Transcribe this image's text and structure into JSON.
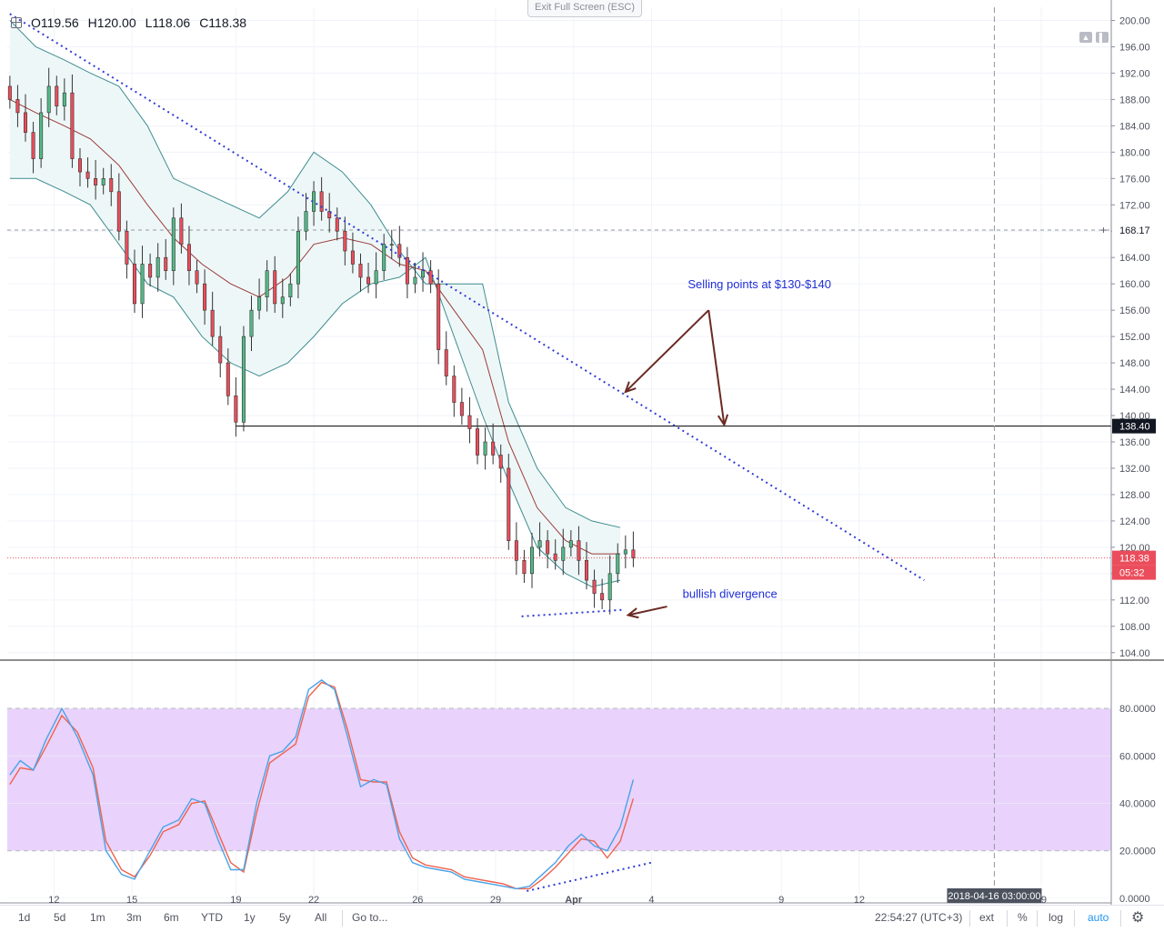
{
  "ohlc": {
    "open": "O119.56",
    "high": "H120.00",
    "low": "L118.06",
    "close": "C118.38"
  },
  "exit_fullscreen_label": "Exit Full Screen (ESC)",
  "chart_data": [
    {
      "type": "candlestick",
      "title": "",
      "y_ticks": [
        104,
        108,
        112,
        116,
        120,
        124,
        128,
        132,
        136,
        140,
        144,
        148,
        152,
        156,
        160,
        164,
        168,
        172,
        176,
        180,
        184,
        188,
        192,
        196,
        200
      ],
      "y_tick_labels": [
        "104.00",
        "108.00",
        "112.00",
        "116.00",
        "120.00",
        "124.00",
        "128.00",
        "132.00",
        "136.00",
        "140.00",
        "144.00",
        "148.00",
        "152.00",
        "156.00",
        "160.00",
        "164.00",
        "168.00",
        "172.00",
        "176.00",
        "180.00",
        "184.00",
        "188.00",
        "192.00",
        "196.00",
        "200.00"
      ],
      "ylim": [
        103,
        202
      ],
      "x_ticks": [
        {
          "t": 12,
          "label": "12"
        },
        {
          "t": 15,
          "label": "15"
        },
        {
          "t": 19,
          "label": "19"
        },
        {
          "t": 22,
          "label": "22"
        },
        {
          "t": 26,
          "label": "26"
        },
        {
          "t": 29,
          "label": "29"
        },
        {
          "t": 32,
          "label": "Apr"
        },
        {
          "t": 35,
          "label": "4"
        },
        {
          "t": 40,
          "label": "9"
        },
        {
          "t": 43,
          "label": "12"
        },
        {
          "t": 50,
          "label": "19"
        }
      ],
      "xlim": [
        10.2,
        52.7
      ],
      "closes": [
        [
          10.3,
          188
        ],
        [
          10.6,
          186
        ],
        [
          10.9,
          183
        ],
        [
          11.2,
          179
        ],
        [
          11.5,
          186
        ],
        [
          11.8,
          190
        ],
        [
          12.1,
          187
        ],
        [
          12.4,
          189
        ],
        [
          12.7,
          179
        ],
        [
          13.0,
          177
        ],
        [
          13.3,
          176
        ],
        [
          13.6,
          175
        ],
        [
          13.9,
          176
        ],
        [
          14.2,
          174
        ],
        [
          14.5,
          168
        ],
        [
          14.8,
          163
        ],
        [
          15.1,
          157
        ],
        [
          15.4,
          163
        ],
        [
          15.7,
          161
        ],
        [
          16.0,
          164
        ],
        [
          16.3,
          162
        ],
        [
          16.6,
          170
        ],
        [
          16.9,
          166
        ],
        [
          17.2,
          162
        ],
        [
          17.5,
          160
        ],
        [
          17.8,
          156
        ],
        [
          18.1,
          152
        ],
        [
          18.4,
          148
        ],
        [
          18.7,
          143
        ],
        [
          19.0,
          139
        ],
        [
          19.3,
          152
        ],
        [
          19.6,
          156
        ],
        [
          19.9,
          158
        ],
        [
          20.2,
          162
        ],
        [
          20.5,
          157
        ],
        [
          20.8,
          158
        ],
        [
          21.1,
          160
        ],
        [
          21.4,
          168
        ],
        [
          21.7,
          171
        ],
        [
          22.0,
          174
        ],
        [
          22.3,
          171
        ],
        [
          22.6,
          170
        ],
        [
          22.9,
          168
        ],
        [
          23.2,
          165
        ],
        [
          23.5,
          163
        ],
        [
          23.8,
          161
        ],
        [
          24.1,
          160
        ],
        [
          24.4,
          162
        ],
        [
          24.7,
          166
        ],
        [
          25.0,
          166
        ],
        [
          25.3,
          164
        ],
        [
          25.6,
          160
        ],
        [
          25.9,
          161
        ],
        [
          26.2,
          162
        ],
        [
          26.5,
          160
        ],
        [
          26.8,
          150
        ],
        [
          27.1,
          146
        ],
        [
          27.4,
          142
        ],
        [
          27.7,
          140
        ],
        [
          28.0,
          138
        ],
        [
          28.3,
          134
        ],
        [
          28.6,
          136
        ],
        [
          28.9,
          134
        ],
        [
          29.2,
          132
        ],
        [
          29.5,
          121
        ],
        [
          29.8,
          118
        ],
        [
          30.1,
          116
        ],
        [
          30.4,
          120
        ],
        [
          30.7,
          121
        ],
        [
          31.0,
          119
        ],
        [
          31.3,
          118
        ],
        [
          31.6,
          120
        ],
        [
          31.9,
          121
        ],
        [
          32.2,
          118
        ],
        [
          32.5,
          115
        ],
        [
          32.8,
          113
        ],
        [
          33.1,
          112
        ],
        [
          33.4,
          116
        ],
        [
          33.7,
          119
        ],
        [
          34.0,
          119.6
        ],
        [
          34.3,
          118.38
        ]
      ],
      "bollinger": {
        "upper": [
          [
            10.3,
            200
          ],
          [
            11.3,
            196
          ],
          [
            12.4,
            194
          ],
          [
            13.4,
            192
          ],
          [
            14.5,
            190
          ],
          [
            15.6,
            184
          ],
          [
            16.6,
            176
          ],
          [
            17.7,
            174
          ],
          [
            18.8,
            172
          ],
          [
            19.9,
            170
          ],
          [
            21.0,
            174
          ],
          [
            22.0,
            180
          ],
          [
            23.1,
            177
          ],
          [
            24.2,
            172
          ],
          [
            25.3,
            165
          ],
          [
            26.3,
            160
          ],
          [
            27.4,
            160
          ],
          [
            28.5,
            160
          ],
          [
            29.5,
            142
          ],
          [
            30.6,
            132
          ],
          [
            31.7,
            126
          ],
          [
            32.7,
            124
          ],
          [
            33.8,
            123
          ]
        ],
        "middle": [
          [
            10.3,
            188
          ],
          [
            11.3,
            186
          ],
          [
            12.4,
            184
          ],
          [
            13.4,
            182
          ],
          [
            14.5,
            178
          ],
          [
            15.6,
            172
          ],
          [
            16.6,
            167
          ],
          [
            17.7,
            163
          ],
          [
            18.8,
            160
          ],
          [
            19.9,
            158
          ],
          [
            21.0,
            161
          ],
          [
            22.0,
            166
          ],
          [
            23.1,
            167
          ],
          [
            24.2,
            166
          ],
          [
            25.3,
            163
          ],
          [
            26.3,
            162
          ],
          [
            27.4,
            156
          ],
          [
            28.5,
            150
          ],
          [
            29.5,
            136
          ],
          [
            30.6,
            126
          ],
          [
            31.7,
            121
          ],
          [
            32.7,
            119
          ],
          [
            33.8,
            119
          ]
        ],
        "lower": [
          [
            10.3,
            176
          ],
          [
            11.3,
            176
          ],
          [
            12.4,
            174
          ],
          [
            13.4,
            172
          ],
          [
            14.5,
            166
          ],
          [
            15.6,
            160
          ],
          [
            16.6,
            158
          ],
          [
            17.7,
            152
          ],
          [
            18.8,
            148
          ],
          [
            19.9,
            146
          ],
          [
            21.0,
            148
          ],
          [
            22.0,
            152
          ],
          [
            23.1,
            157
          ],
          [
            24.2,
            160
          ],
          [
            25.3,
            161
          ],
          [
            26.3,
            164
          ],
          [
            27.4,
            152
          ],
          [
            28.5,
            140
          ],
          [
            29.5,
            130
          ],
          [
            30.6,
            120
          ],
          [
            31.7,
            116
          ],
          [
            32.7,
            114
          ],
          [
            33.8,
            115
          ]
        ]
      },
      "trendline": [
        [
          10.3,
          201
        ],
        [
          45.5,
          115
        ]
      ],
      "horizontal_levels": [
        {
          "y": 168.17,
          "label": "168.17"
        },
        {
          "y": 138.4,
          "label": "138.40"
        }
      ],
      "last_price": {
        "y": 118.38,
        "label": "118.38",
        "countdown": "05:32"
      },
      "annotations": [
        {
          "text": "Selling points at $130-$140",
          "x": 36.4,
          "y": 160
        },
        {
          "text": "bullish divergence",
          "x": 36.2,
          "y": 113
        }
      ],
      "divergence_line": [
        [
          30.0,
          109.5
        ],
        [
          33.9,
          110.5
        ]
      ],
      "arrows": [
        {
          "from": [
            37.2,
            156
          ],
          "to": [
            34.0,
            143.6
          ]
        },
        {
          "from": [
            37.2,
            156
          ],
          "to": [
            37.8,
            138.6
          ]
        },
        {
          "from": [
            35.6,
            111
          ],
          "to": [
            34.1,
            109.7
          ]
        }
      ],
      "crosshair_x": 48.2,
      "crosshair_label": "2018-04-16 03:00:00"
    },
    {
      "type": "line",
      "title": "",
      "y_ticks": [
        0,
        20,
        40,
        60,
        80
      ],
      "y_tick_labels": [
        "0.0000",
        "20.0000",
        "40.0000",
        "60.0000",
        "80.0000"
      ],
      "ylim": [
        -2,
        100
      ],
      "overbought": 80,
      "oversold": 20,
      "series": [
        {
          "values": [
            [
              10.3,
              52
            ],
            [
              10.7,
              58
            ],
            [
              11.2,
              54
            ],
            [
              11.7,
              67
            ],
            [
              12.3,
              80
            ],
            [
              12.9,
              68
            ],
            [
              13.5,
              52
            ],
            [
              14.0,
              20
            ],
            [
              14.6,
              10
            ],
            [
              15.1,
              8
            ],
            [
              15.7,
              20
            ],
            [
              16.2,
              30
            ],
            [
              16.8,
              33
            ],
            [
              17.3,
              42
            ],
            [
              17.8,
              40
            ],
            [
              18.3,
              25
            ],
            [
              18.8,
              12
            ],
            [
              19.3,
              12
            ],
            [
              19.8,
              40
            ],
            [
              20.3,
              60
            ],
            [
              20.8,
              62
            ],
            [
              21.3,
              68
            ],
            [
              21.8,
              88
            ],
            [
              22.3,
              92
            ],
            [
              22.8,
              88
            ],
            [
              23.3,
              68
            ],
            [
              23.8,
              47
            ],
            [
              24.3,
              50
            ],
            [
              24.8,
              48
            ],
            [
              25.3,
              25
            ],
            [
              25.8,
              15
            ],
            [
              26.3,
              13
            ],
            [
              26.8,
              12
            ],
            [
              27.3,
              11
            ],
            [
              27.8,
              8
            ],
            [
              28.3,
              7
            ],
            [
              28.8,
              6
            ],
            [
              29.3,
              5
            ],
            [
              29.8,
              4
            ],
            [
              30.3,
              5
            ],
            [
              30.8,
              10
            ],
            [
              31.3,
              15
            ],
            [
              31.8,
              22
            ],
            [
              32.3,
              27
            ],
            [
              32.8,
              22
            ],
            [
              33.3,
              20
            ],
            [
              33.8,
              30
            ],
            [
              34.3,
              50
            ]
          ]
        },
        {
          "values": [
            [
              10.3,
              48
            ],
            [
              10.7,
              55
            ],
            [
              11.2,
              54
            ],
            [
              11.7,
              64
            ],
            [
              12.3,
              77
            ],
            [
              12.9,
              70
            ],
            [
              13.5,
              55
            ],
            [
              14.0,
              24
            ],
            [
              14.6,
              12
            ],
            [
              15.1,
              9
            ],
            [
              15.7,
              18
            ],
            [
              16.2,
              28
            ],
            [
              16.8,
              31
            ],
            [
              17.3,
              40
            ],
            [
              17.8,
              41
            ],
            [
              18.3,
              28
            ],
            [
              18.8,
              15
            ],
            [
              19.3,
              11
            ],
            [
              19.8,
              36
            ],
            [
              20.3,
              57
            ],
            [
              20.8,
              61
            ],
            [
              21.3,
              65
            ],
            [
              21.8,
              85
            ],
            [
              22.3,
              91
            ],
            [
              22.8,
              89
            ],
            [
              23.3,
              71
            ],
            [
              23.8,
              50
            ],
            [
              24.3,
              49
            ],
            [
              24.8,
              49
            ],
            [
              25.3,
              28
            ],
            [
              25.8,
              17
            ],
            [
              26.3,
              14
            ],
            [
              26.8,
              13
            ],
            [
              27.3,
              12
            ],
            [
              27.8,
              9
            ],
            [
              28.3,
              8
            ],
            [
              28.8,
              7
            ],
            [
              29.3,
              6
            ],
            [
              29.8,
              4
            ],
            [
              30.3,
              4
            ],
            [
              30.8,
              8
            ],
            [
              31.3,
              13
            ],
            [
              31.8,
              19
            ],
            [
              32.3,
              25
            ],
            [
              32.8,
              24
            ],
            [
              33.3,
              17
            ],
            [
              33.8,
              24
            ],
            [
              34.3,
              42
            ]
          ]
        }
      ],
      "divergence_line": [
        [
          30.2,
          3
        ],
        [
          35.0,
          15
        ]
      ]
    }
  ],
  "bottom": {
    "buttons": [
      "1d",
      "5d",
      "1m",
      "3m",
      "6m",
      "YTD",
      "1y",
      "5y",
      "All"
    ],
    "goto": "Go to...",
    "time": "22:54:27 (UTC+3)",
    "ext": "ext",
    "percent": "%",
    "log": "log",
    "auto": "auto"
  },
  "colors": {
    "up": "#53b987",
    "down": "#eb4d5c",
    "bb": "#3f8d91",
    "bb_fill": "#eef7f7",
    "ma": "#9b3b3b",
    "trend": "#2f3bd6",
    "annotation": "#1f2fd8",
    "arrow": "#6a2a22",
    "stoch_k": "#4aa3e8",
    "stoch_d": "#f0624d",
    "stoch_band": "#e9d2fb"
  }
}
